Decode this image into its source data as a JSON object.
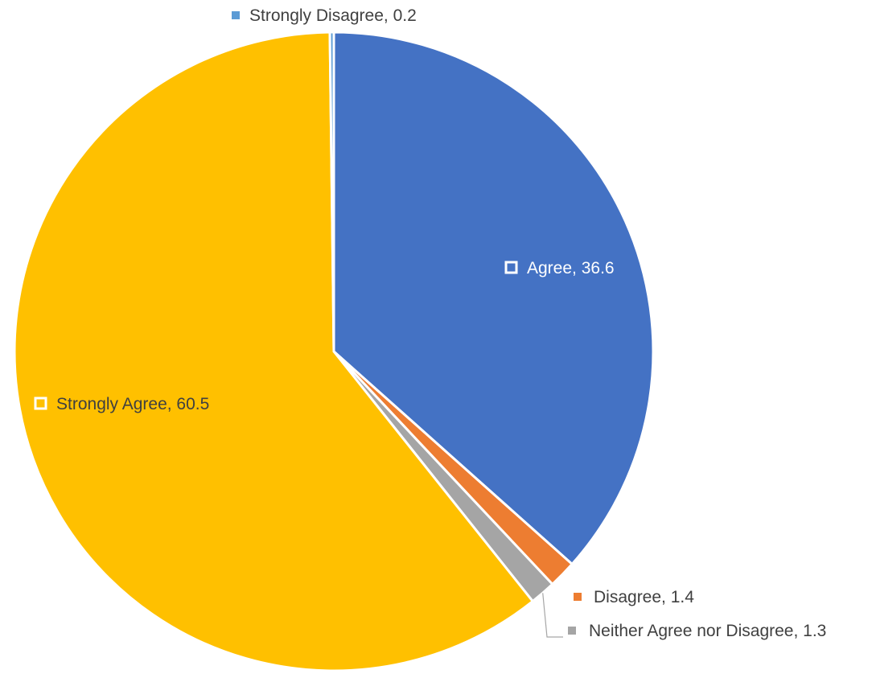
{
  "chart_data": {
    "type": "pie",
    "title": "",
    "slices": [
      {
        "label": "Agree",
        "value": 36.6,
        "color": "#4472C4",
        "text": "Agree, 36.6"
      },
      {
        "label": "Disagree",
        "value": 1.4,
        "color": "#ED7D31",
        "text": "Disagree, 1.4"
      },
      {
        "label": "Neither Agree nor Disagree",
        "value": 1.3,
        "color": "#A5A5A5",
        "text": "Neither Agree nor Disagree, 1.3"
      },
      {
        "label": "Strongly Agree",
        "value": 60.5,
        "color": "#FFC000",
        "text": "Strongly Agree, 60.5"
      },
      {
        "label": "Strongly Disagree",
        "value": 0.2,
        "color": "#5B9BD5",
        "text": "Strongly Disagree, 0.2"
      }
    ],
    "data_labels": "category name and value",
    "legend": "none"
  }
}
